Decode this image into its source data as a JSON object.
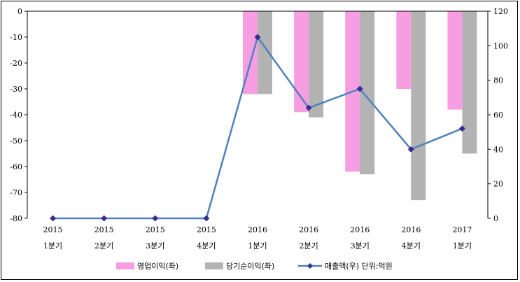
{
  "chart_data": {
    "type": "bar+line",
    "categories": [
      [
        "2015",
        "1분기"
      ],
      [
        "2015",
        "2분기"
      ],
      [
        "2015",
        "3분기"
      ],
      [
        "2015",
        "4분기"
      ],
      [
        "2016",
        "1분기"
      ],
      [
        "2016",
        "2분기"
      ],
      [
        "2016",
        "3분기"
      ],
      [
        "2016",
        "4분기"
      ],
      [
        "2017",
        "1분기"
      ]
    ],
    "series": [
      {
        "name": "영업이익(좌)",
        "type": "bar",
        "axis": "left",
        "color": "#f79ee3",
        "values": [
          0,
          0,
          0,
          0,
          -32,
          -39,
          -62,
          -30,
          -38
        ]
      },
      {
        "name": "당기순이익(좌)",
        "type": "bar",
        "axis": "left",
        "color": "#b3b3b3",
        "values": [
          0,
          0,
          0,
          0,
          -32,
          -41,
          -63,
          -73,
          -55
        ]
      },
      {
        "name": "매출액(우)",
        "type": "line",
        "axis": "right",
        "color": "#4f81bd",
        "marker_color": "#3b2b8f",
        "values": [
          0,
          0,
          0,
          0,
          105,
          64,
          75,
          40,
          52
        ]
      }
    ],
    "y_left": {
      "min": -80,
      "max": 0,
      "step": 10
    },
    "y_right": {
      "min": 0,
      "max": 120,
      "step": 20
    },
    "unit_note": "단위:억원",
    "legend_position": "bottom",
    "grid": false
  }
}
